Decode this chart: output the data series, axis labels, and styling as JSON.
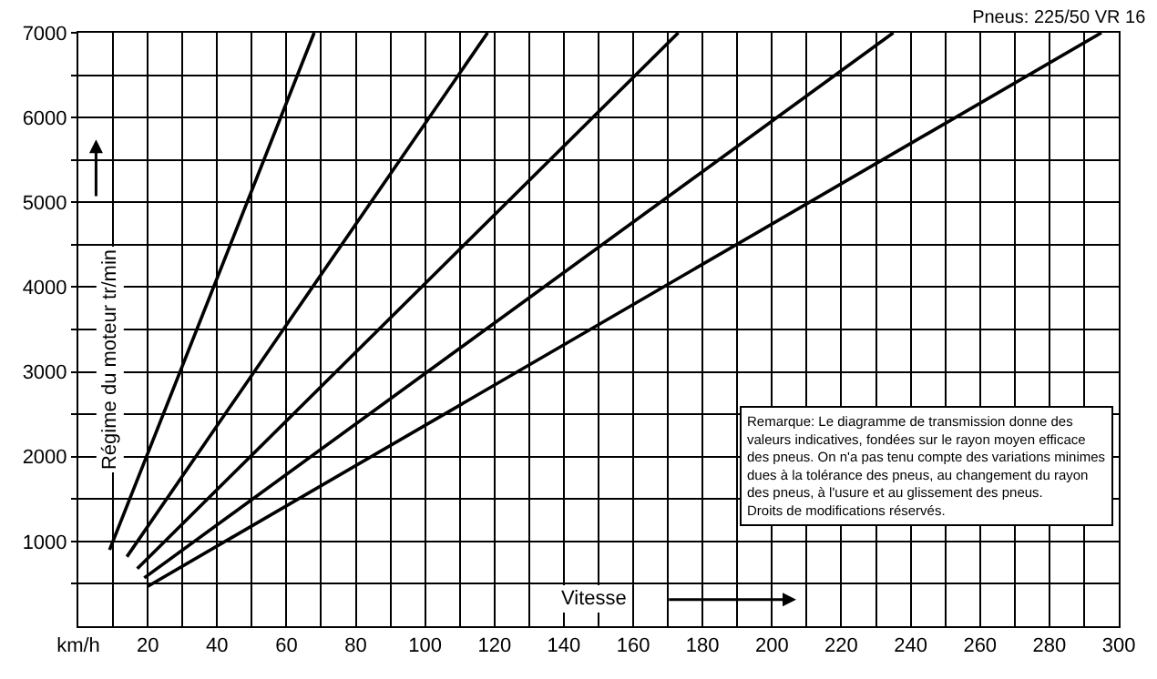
{
  "chart_data": {
    "type": "line",
    "title": "Pneus: 225/50 VR 16",
    "xlabel": "Vitesse",
    "ylabel": "Régime du moteur tr/min",
    "annotations": [
      "Remarque: Le diagramme de transmission donne des\nvaleurs indicatives, fondées sur le rayon moyen efficace\ndes pneus. On n'a pas tenu compte des variations minimes\ndues à la tolérance des pneus, au changement du rayon\ndes pneus, à l'usure et au glissement des pneus.\nDroits de modifications réservés."
    ],
    "series": [
      {
        "color": "#000000",
        "x": [
          9,
          68
        ],
        "values": [
          900,
          7000
        ]
      },
      {
        "color": "#000000",
        "x": [
          14,
          118
        ],
        "values": [
          820,
          7000
        ]
      },
      {
        "color": "#000000",
        "x": [
          17,
          173
        ],
        "values": [
          680,
          7000
        ]
      },
      {
        "color": "#000000",
        "x": [
          19,
          235
        ],
        "values": [
          570,
          7000
        ]
      },
      {
        "color": "#000000",
        "x": [
          20,
          295
        ],
        "values": [
          470,
          7000
        ]
      }
    ],
    "xlim": [
      0,
      300
    ],
    "xticks": [
      {
        "value": 0,
        "label": "km/h"
      },
      {
        "value": 10,
        "label": null
      },
      20,
      {
        "value": 30,
        "label": null
      },
      40,
      {
        "value": 50,
        "label": null
      },
      60,
      {
        "value": 70,
        "label": null
      },
      80,
      {
        "value": 90,
        "label": null
      },
      100,
      {
        "value": 110,
        "label": null
      },
      120,
      {
        "value": 130,
        "label": null
      },
      140,
      {
        "value": 150,
        "label": null
      },
      160,
      {
        "value": 170,
        "label": null
      },
      180,
      {
        "value": 190,
        "label": null
      },
      200,
      {
        "value": 210,
        "label": null
      },
      220,
      {
        "value": 230,
        "label": null
      },
      240,
      {
        "value": 250,
        "label": null
      },
      260,
      {
        "value": 270,
        "label": null
      },
      280,
      {
        "value": 290,
        "label": null
      },
      300
    ],
    "ylim": [
      0,
      7000
    ],
    "yticks": [
      {
        "value": 500,
        "label": null
      },
      1000,
      {
        "value": 1500,
        "label": null
      },
      2000,
      {
        "value": 2500,
        "label": null
      },
      3000,
      {
        "value": 3500,
        "label": null
      },
      4000,
      {
        "value": 4500,
        "label": null
      },
      5000,
      {
        "value": 5500,
        "label": null
      },
      6000,
      {
        "value": 6500,
        "label": null
      },
      7000
    ],
    "grid": true,
    "marker": "none",
    "line_style": "solid"
  }
}
